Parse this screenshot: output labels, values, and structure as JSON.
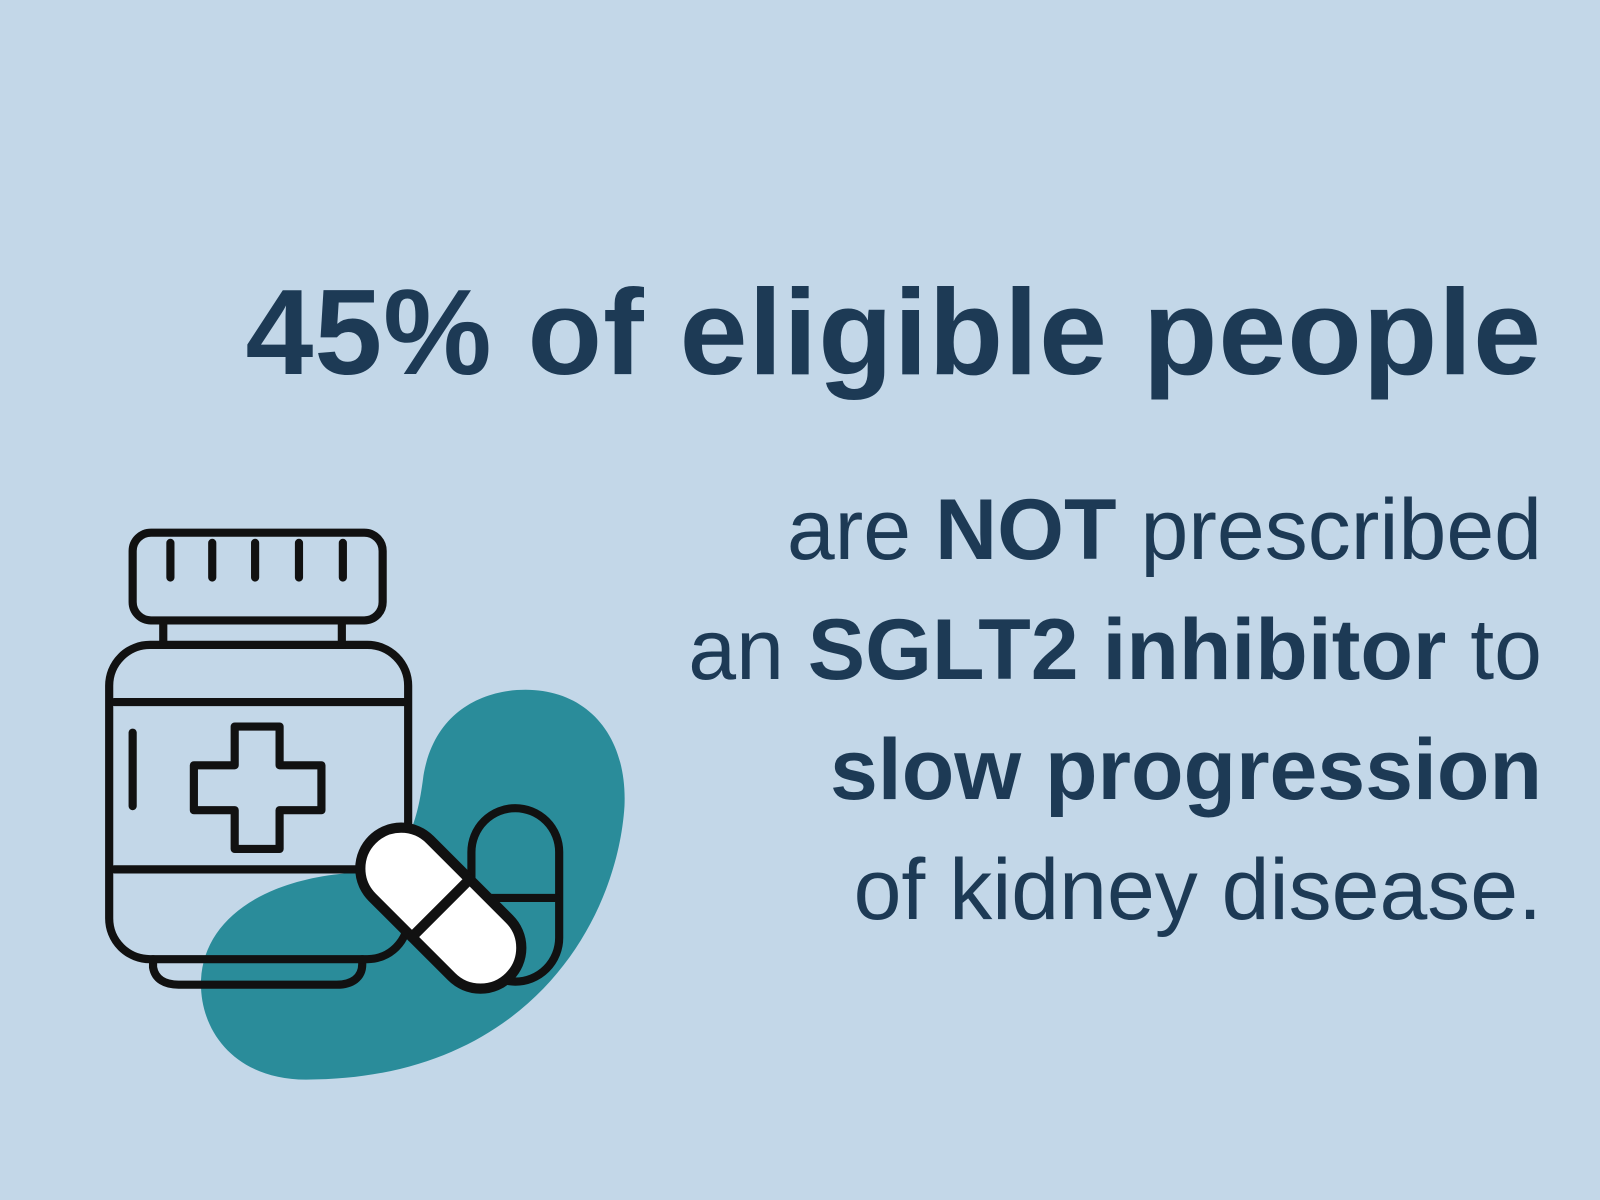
{
  "headline": "45% of eligible people",
  "body": {
    "lines": [
      [
        {
          "text": "are ",
          "bold": false
        },
        {
          "text": "NOT",
          "bold": true
        },
        {
          "text": " prescribed",
          "bold": false
        }
      ],
      [
        {
          "text": "an ",
          "bold": false
        },
        {
          "text": "SGLT2 inhibitor",
          "bold": true
        },
        {
          "text": " to",
          "bold": false
        }
      ],
      [
        {
          "text": "slow progression",
          "bold": true
        }
      ],
      [
        {
          "text": "of kidney disease.",
          "bold": false
        }
      ]
    ]
  }
}
